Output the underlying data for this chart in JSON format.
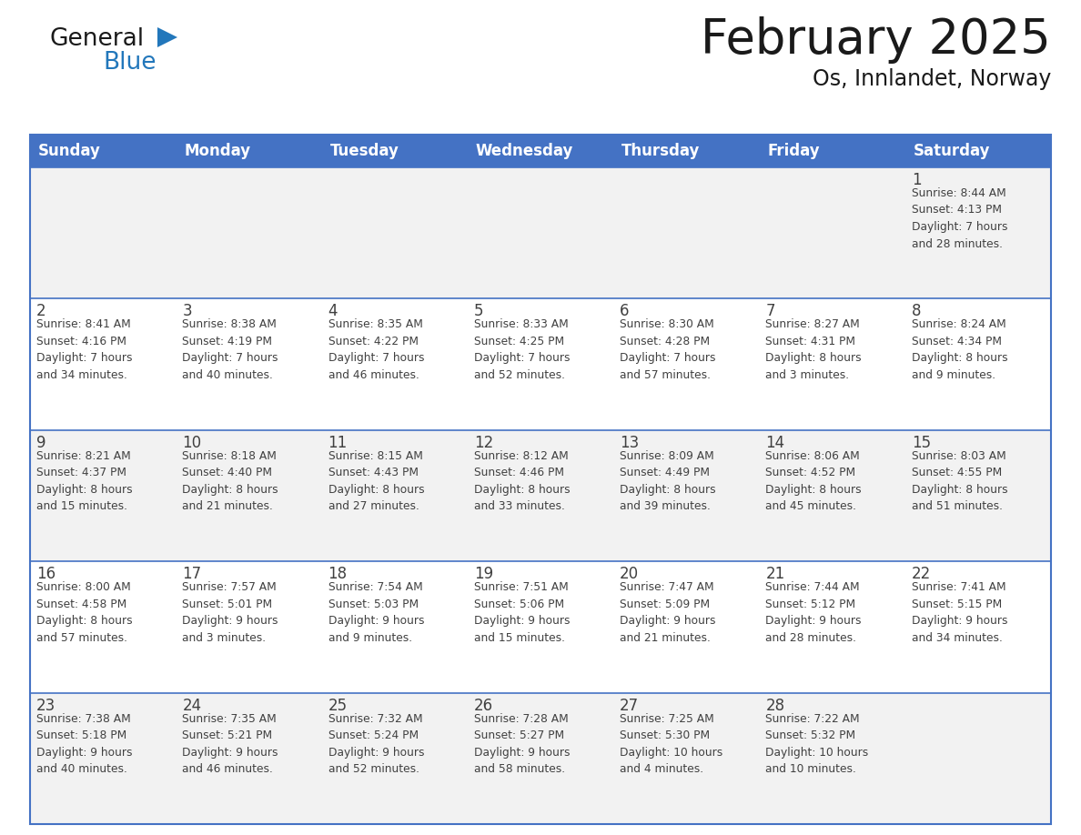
{
  "title": "February 2025",
  "subtitle": "Os, Innlandet, Norway",
  "header_color": "#4472C4",
  "header_text_color": "#FFFFFF",
  "cell_bg_even": "#F2F2F2",
  "cell_bg_odd": "#FFFFFF",
  "border_color": "#4472C4",
  "title_color": "#1a1a1a",
  "text_color": "#404040",
  "days_of_week": [
    "Sunday",
    "Monday",
    "Tuesday",
    "Wednesday",
    "Thursday",
    "Friday",
    "Saturday"
  ],
  "calendar_data": [
    [
      {
        "day": "",
        "info": ""
      },
      {
        "day": "",
        "info": ""
      },
      {
        "day": "",
        "info": ""
      },
      {
        "day": "",
        "info": ""
      },
      {
        "day": "",
        "info": ""
      },
      {
        "day": "",
        "info": ""
      },
      {
        "day": "1",
        "info": "Sunrise: 8:44 AM\nSunset: 4:13 PM\nDaylight: 7 hours\nand 28 minutes."
      }
    ],
    [
      {
        "day": "2",
        "info": "Sunrise: 8:41 AM\nSunset: 4:16 PM\nDaylight: 7 hours\nand 34 minutes."
      },
      {
        "day": "3",
        "info": "Sunrise: 8:38 AM\nSunset: 4:19 PM\nDaylight: 7 hours\nand 40 minutes."
      },
      {
        "day": "4",
        "info": "Sunrise: 8:35 AM\nSunset: 4:22 PM\nDaylight: 7 hours\nand 46 minutes."
      },
      {
        "day": "5",
        "info": "Sunrise: 8:33 AM\nSunset: 4:25 PM\nDaylight: 7 hours\nand 52 minutes."
      },
      {
        "day": "6",
        "info": "Sunrise: 8:30 AM\nSunset: 4:28 PM\nDaylight: 7 hours\nand 57 minutes."
      },
      {
        "day": "7",
        "info": "Sunrise: 8:27 AM\nSunset: 4:31 PM\nDaylight: 8 hours\nand 3 minutes."
      },
      {
        "day": "8",
        "info": "Sunrise: 8:24 AM\nSunset: 4:34 PM\nDaylight: 8 hours\nand 9 minutes."
      }
    ],
    [
      {
        "day": "9",
        "info": "Sunrise: 8:21 AM\nSunset: 4:37 PM\nDaylight: 8 hours\nand 15 minutes."
      },
      {
        "day": "10",
        "info": "Sunrise: 8:18 AM\nSunset: 4:40 PM\nDaylight: 8 hours\nand 21 minutes."
      },
      {
        "day": "11",
        "info": "Sunrise: 8:15 AM\nSunset: 4:43 PM\nDaylight: 8 hours\nand 27 minutes."
      },
      {
        "day": "12",
        "info": "Sunrise: 8:12 AM\nSunset: 4:46 PM\nDaylight: 8 hours\nand 33 minutes."
      },
      {
        "day": "13",
        "info": "Sunrise: 8:09 AM\nSunset: 4:49 PM\nDaylight: 8 hours\nand 39 minutes."
      },
      {
        "day": "14",
        "info": "Sunrise: 8:06 AM\nSunset: 4:52 PM\nDaylight: 8 hours\nand 45 minutes."
      },
      {
        "day": "15",
        "info": "Sunrise: 8:03 AM\nSunset: 4:55 PM\nDaylight: 8 hours\nand 51 minutes."
      }
    ],
    [
      {
        "day": "16",
        "info": "Sunrise: 8:00 AM\nSunset: 4:58 PM\nDaylight: 8 hours\nand 57 minutes."
      },
      {
        "day": "17",
        "info": "Sunrise: 7:57 AM\nSunset: 5:01 PM\nDaylight: 9 hours\nand 3 minutes."
      },
      {
        "day": "18",
        "info": "Sunrise: 7:54 AM\nSunset: 5:03 PM\nDaylight: 9 hours\nand 9 minutes."
      },
      {
        "day": "19",
        "info": "Sunrise: 7:51 AM\nSunset: 5:06 PM\nDaylight: 9 hours\nand 15 minutes."
      },
      {
        "day": "20",
        "info": "Sunrise: 7:47 AM\nSunset: 5:09 PM\nDaylight: 9 hours\nand 21 minutes."
      },
      {
        "day": "21",
        "info": "Sunrise: 7:44 AM\nSunset: 5:12 PM\nDaylight: 9 hours\nand 28 minutes."
      },
      {
        "day": "22",
        "info": "Sunrise: 7:41 AM\nSunset: 5:15 PM\nDaylight: 9 hours\nand 34 minutes."
      }
    ],
    [
      {
        "day": "23",
        "info": "Sunrise: 7:38 AM\nSunset: 5:18 PM\nDaylight: 9 hours\nand 40 minutes."
      },
      {
        "day": "24",
        "info": "Sunrise: 7:35 AM\nSunset: 5:21 PM\nDaylight: 9 hours\nand 46 minutes."
      },
      {
        "day": "25",
        "info": "Sunrise: 7:32 AM\nSunset: 5:24 PM\nDaylight: 9 hours\nand 52 minutes."
      },
      {
        "day": "26",
        "info": "Sunrise: 7:28 AM\nSunset: 5:27 PM\nDaylight: 9 hours\nand 58 minutes."
      },
      {
        "day": "27",
        "info": "Sunrise: 7:25 AM\nSunset: 5:30 PM\nDaylight: 10 hours\nand 4 minutes."
      },
      {
        "day": "28",
        "info": "Sunrise: 7:22 AM\nSunset: 5:32 PM\nDaylight: 10 hours\nand 10 minutes."
      },
      {
        "day": "",
        "info": ""
      }
    ]
  ],
  "logo_color_general": "#1a1a1a",
  "logo_color_blue": "#2277bb",
  "logo_triangle_color": "#2277bb",
  "fig_width": 11.88,
  "fig_height": 9.18,
  "dpi": 100
}
